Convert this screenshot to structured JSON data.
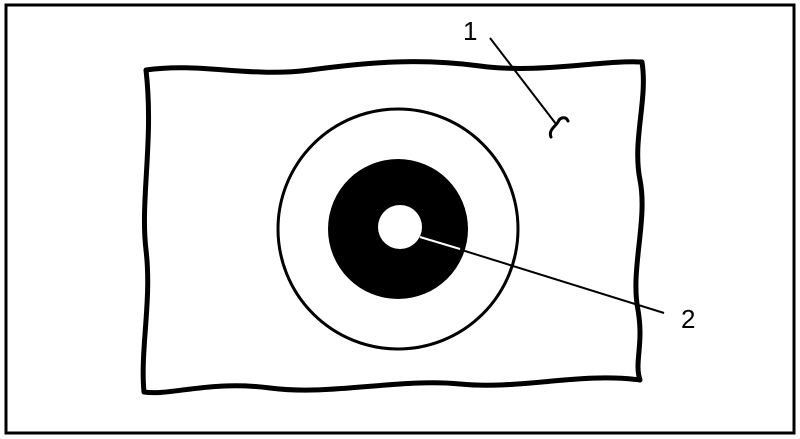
{
  "colors": {
    "ink": "#000000",
    "paper": "#ffffff"
  },
  "callouts": {
    "label_1": "1",
    "label_2": "2"
  }
}
